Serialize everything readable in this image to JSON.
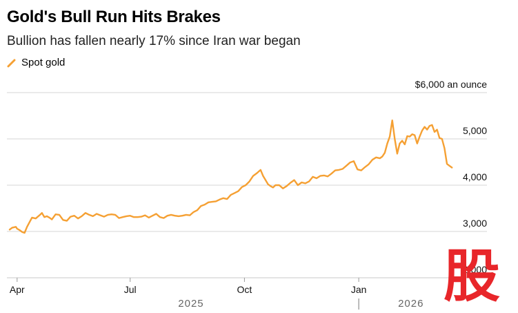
{
  "header": {
    "title": "Gold's Bull Run Hits Brakes",
    "subtitle": "Bullion has fallen nearly 17% since Iran war began"
  },
  "colors": {
    "series": "#f5a033",
    "grid": "#d6d6d6",
    "axis": "#c8c8c8",
    "watermark": "#e8262a"
  },
  "watermark": {
    "char": "股",
    "icon": "stock-char-logo"
  },
  "chart_data": {
    "type": "line",
    "title": "Gold's Bull Run Hits Brakes",
    "subtitle": "Bullion has fallen nearly 17% since Iran war began",
    "xlabel": "",
    "ylabel": "",
    "y_unit_label": "$6,000 an ounce",
    "ylim": [
      2000,
      6000
    ],
    "y_ticks": [
      {
        "value": 6000,
        "label": "$6,000 an ounce"
      },
      {
        "value": 5000,
        "label": "5,000"
      },
      {
        "value": 4000,
        "label": "4,000"
      },
      {
        "value": 3000,
        "label": "3,000"
      },
      {
        "value": 2000,
        "label": "2,000"
      }
    ],
    "x_ticks": [
      {
        "label": "Apr",
        "day": 0
      },
      {
        "label": "Jul",
        "day": 91
      },
      {
        "label": "Oct",
        "day": 183
      },
      {
        "label": "Jan",
        "day": 275
      }
    ],
    "years": [
      {
        "label": "2025",
        "day": 140
      },
      {
        "label": "2026",
        "day": 317
      }
    ],
    "year_divider_day": 275,
    "x_domain_days": [
      -6,
      356
    ],
    "grid": true,
    "legend": "top-left",
    "series": [
      {
        "name": "Spot gold",
        "x": [
          -6,
          -4,
          -1,
          0,
          2,
          4,
          6,
          8,
          10,
          12,
          15,
          18,
          20,
          22,
          24,
          26,
          28,
          31,
          34,
          37,
          40,
          43,
          46,
          49,
          52,
          55,
          58,
          61,
          64,
          67,
          70,
          73,
          76,
          79,
          82,
          85,
          88,
          91,
          94,
          97,
          100,
          103,
          106,
          109,
          112,
          115,
          118,
          121,
          124,
          127,
          130,
          133,
          136,
          139,
          142,
          145,
          148,
          151,
          154,
          157,
          160,
          163,
          166,
          169,
          172,
          175,
          178,
          181,
          184,
          187,
          190,
          193,
          196,
          198,
          200,
          202,
          204,
          206,
          208,
          211,
          214,
          217,
          220,
          223,
          226,
          229,
          232,
          235,
          238,
          241,
          244,
          247,
          250,
          253,
          256,
          259,
          262,
          265,
          268,
          271,
          274,
          277,
          280,
          283,
          286,
          289,
          292,
          294,
          296,
          298,
          300,
          302,
          304,
          306,
          308,
          310,
          312,
          314,
          316,
          318,
          320,
          322,
          324,
          326,
          328,
          330,
          332,
          334,
          336,
          338,
          340,
          342,
          344,
          346,
          348,
          350
        ],
        "values": [
          3040,
          3080,
          3100,
          3060,
          3030,
          2990,
          2970,
          3100,
          3200,
          3300,
          3280,
          3350,
          3400,
          3310,
          3330,
          3300,
          3260,
          3370,
          3360,
          3250,
          3230,
          3320,
          3340,
          3280,
          3330,
          3400,
          3360,
          3330,
          3380,
          3350,
          3320,
          3360,
          3370,
          3360,
          3290,
          3310,
          3330,
          3340,
          3310,
          3310,
          3320,
          3350,
          3300,
          3340,
          3380,
          3310,
          3290,
          3340,
          3360,
          3340,
          3330,
          3340,
          3360,
          3350,
          3420,
          3460,
          3550,
          3580,
          3630,
          3640,
          3650,
          3690,
          3720,
          3700,
          3790,
          3830,
          3870,
          3960,
          4000,
          4080,
          4200,
          4260,
          4330,
          4200,
          4110,
          4020,
          3980,
          3950,
          4000,
          4000,
          3930,
          3980,
          4050,
          4110,
          4000,
          4060,
          4040,
          4080,
          4180,
          4150,
          4200,
          4210,
          4190,
          4250,
          4320,
          4330,
          4350,
          4420,
          4490,
          4520,
          4340,
          4320,
          4390,
          4450,
          4550,
          4600,
          4580,
          4620,
          4700,
          4900,
          5050,
          5400,
          5000,
          4680,
          4900,
          4960,
          4880,
          5060,
          5050,
          5100,
          5080,
          4900,
          5050,
          5180,
          5260,
          5200,
          5280,
          5300,
          5150,
          5200,
          5020,
          5000,
          4800,
          4460,
          4420,
          4380
        ]
      }
    ]
  }
}
